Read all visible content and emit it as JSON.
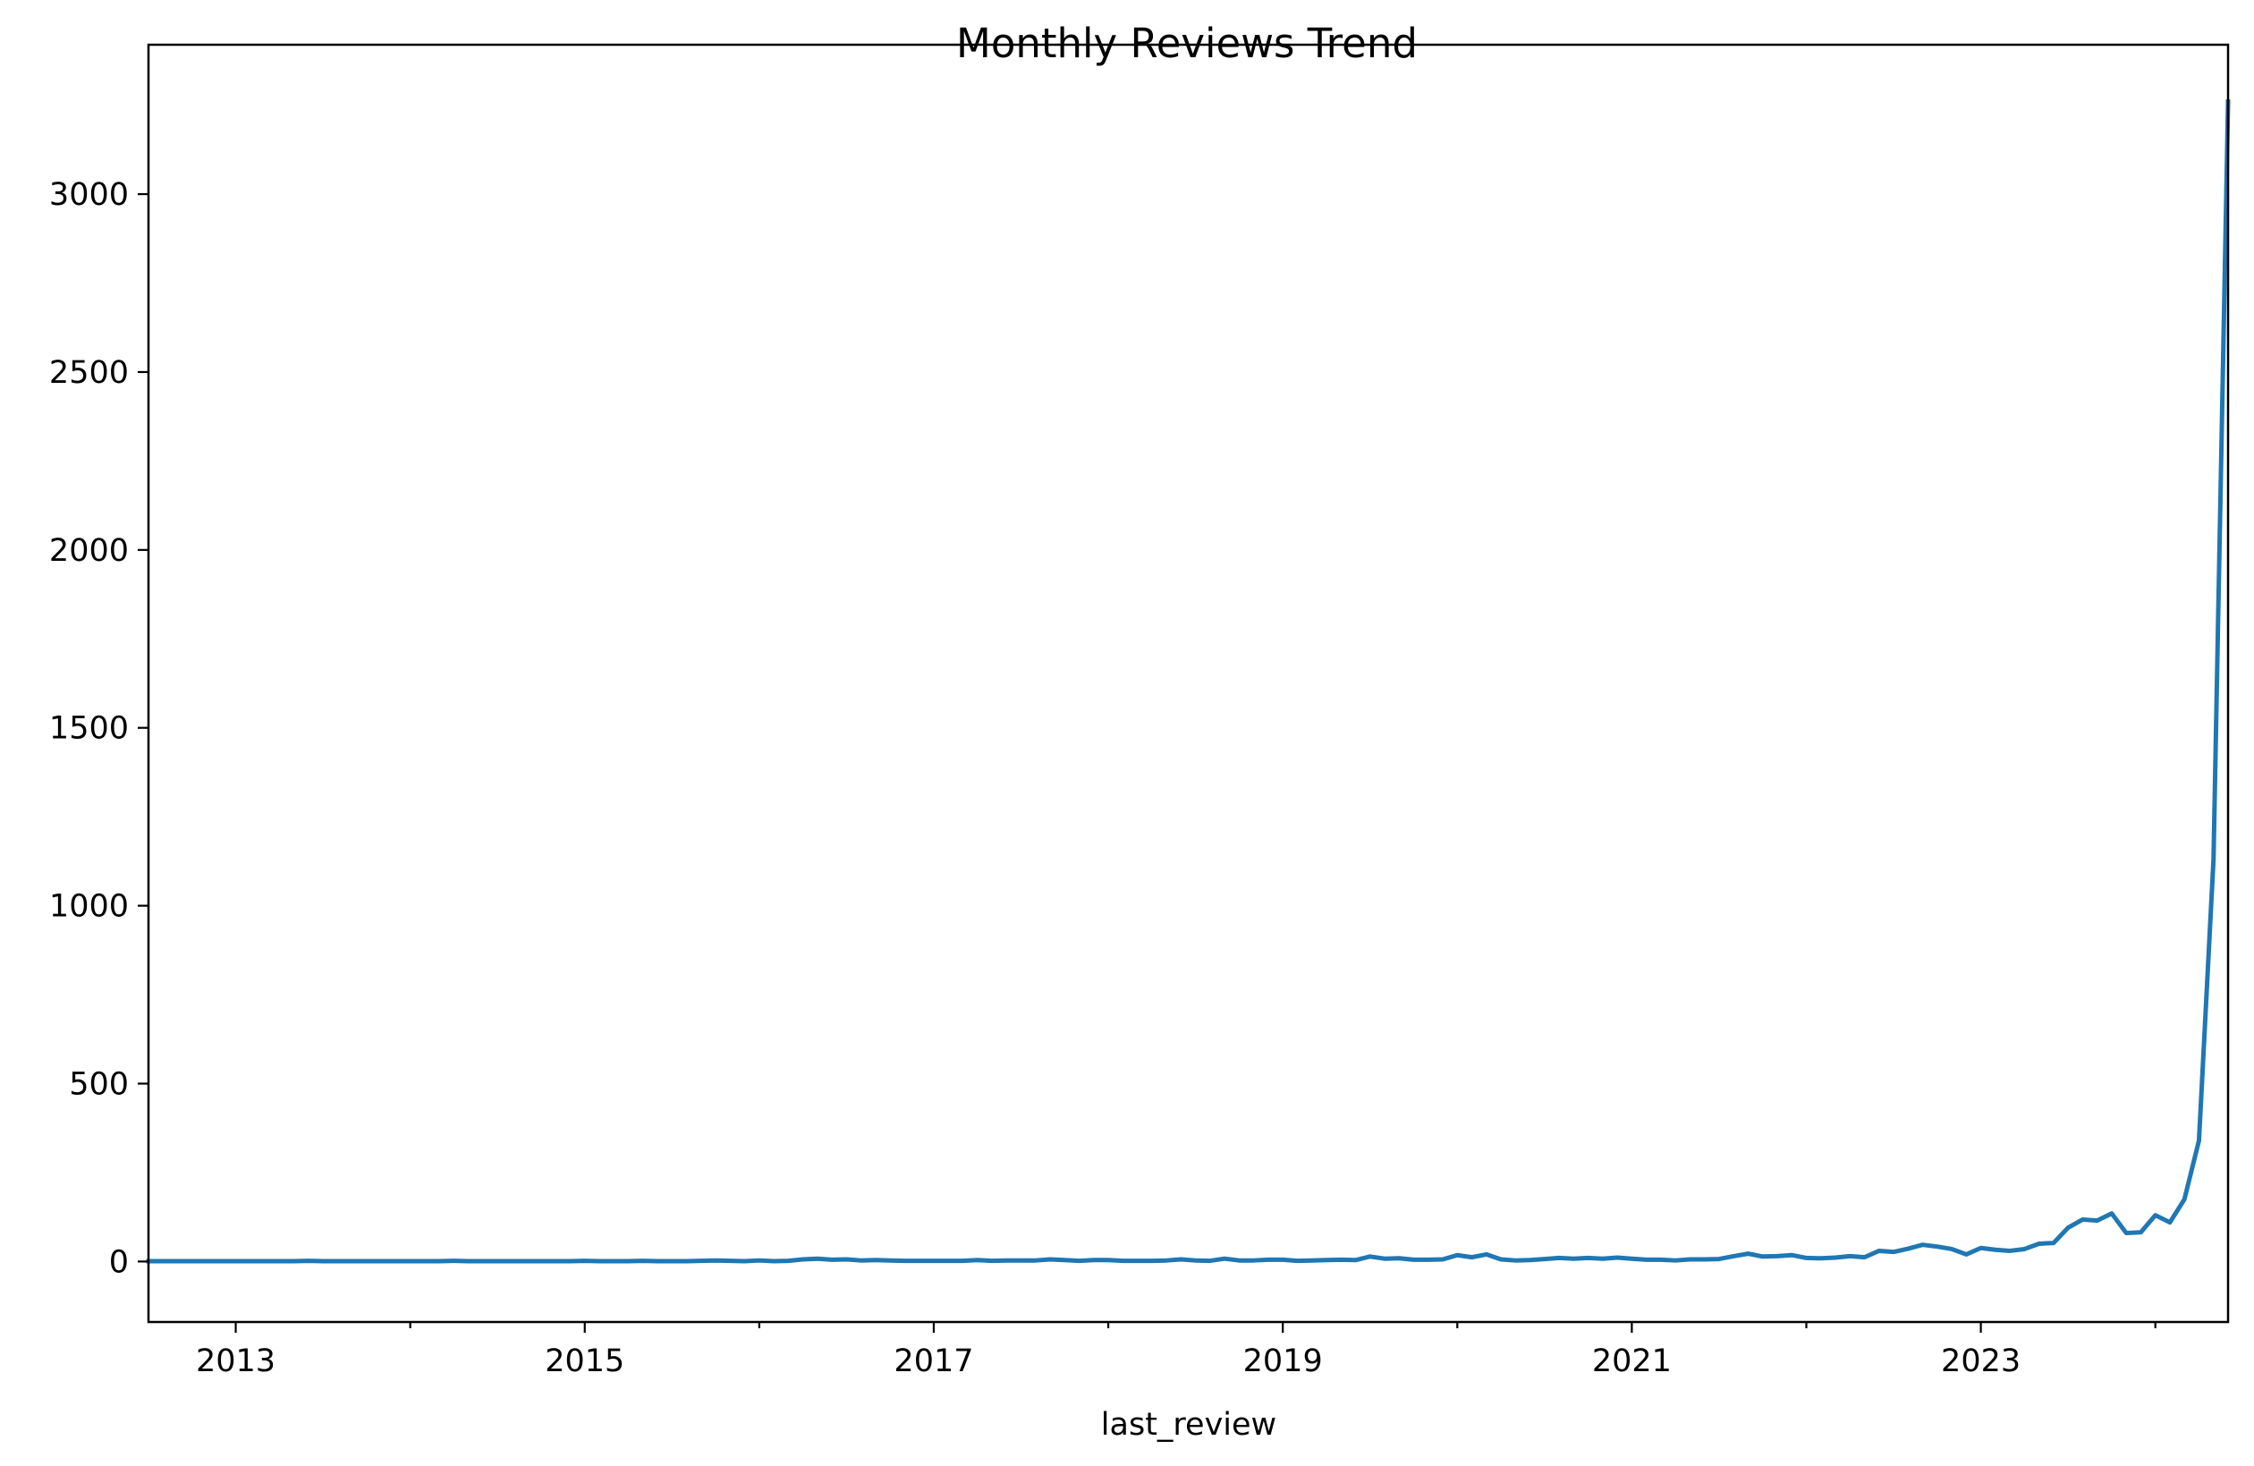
{
  "chart_data": {
    "type": "line",
    "title": "Monthly Reviews Trend",
    "xlabel": "last_review",
    "ylabel": "",
    "x_type": "date",
    "xlim": [
      "2012-07",
      "2024-06"
    ],
    "ylim": [
      -170,
      3420
    ],
    "x_major_ticks": [
      "2013-01",
      "2015-01",
      "2017-01",
      "2019-01",
      "2021-01",
      "2023-01"
    ],
    "x_tick_labels": [
      "2013",
      "2015",
      "2017",
      "2019",
      "2021",
      "2023"
    ],
    "x_minor_ticks": [
      "2014-01",
      "2016-01",
      "2018-01",
      "2020-01",
      "2022-01",
      "2024-01"
    ],
    "y_ticks": [
      0,
      500,
      1000,
      1500,
      2000,
      2500,
      3000
    ],
    "y_tick_labels": [
      "0",
      "500",
      "1000",
      "1500",
      "2000",
      "2500",
      "3000"
    ],
    "grid": false,
    "legend": "none",
    "series": [
      {
        "color": "#1f77b4",
        "x": [
          "2012-07",
          "2012-08",
          "2012-09",
          "2012-10",
          "2012-11",
          "2012-12",
          "2013-01",
          "2013-02",
          "2013-03",
          "2013-04",
          "2013-05",
          "2013-06",
          "2013-07",
          "2013-08",
          "2013-09",
          "2013-10",
          "2013-11",
          "2013-12",
          "2014-01",
          "2014-02",
          "2014-03",
          "2014-04",
          "2014-05",
          "2014-06",
          "2014-07",
          "2014-08",
          "2014-09",
          "2014-10",
          "2014-11",
          "2014-12",
          "2015-01",
          "2015-02",
          "2015-03",
          "2015-04",
          "2015-05",
          "2015-06",
          "2015-07",
          "2015-08",
          "2015-09",
          "2015-10",
          "2015-11",
          "2015-12",
          "2016-01",
          "2016-02",
          "2016-03",
          "2016-04",
          "2016-05",
          "2016-06",
          "2016-07",
          "2016-08",
          "2016-09",
          "2016-10",
          "2016-11",
          "2016-12",
          "2017-01",
          "2017-02",
          "2017-03",
          "2017-04",
          "2017-05",
          "2017-06",
          "2017-07",
          "2017-08",
          "2017-09",
          "2017-10",
          "2017-11",
          "2017-12",
          "2018-01",
          "2018-02",
          "2018-03",
          "2018-04",
          "2018-05",
          "2018-06",
          "2018-07",
          "2018-08",
          "2018-09",
          "2018-10",
          "2018-11",
          "2018-12",
          "2019-01",
          "2019-02",
          "2019-03",
          "2019-04",
          "2019-05",
          "2019-06",
          "2019-07",
          "2019-08",
          "2019-09",
          "2019-10",
          "2019-11",
          "2019-12",
          "2020-01",
          "2020-02",
          "2020-03",
          "2020-04",
          "2020-05",
          "2020-06",
          "2020-07",
          "2020-08",
          "2020-09",
          "2020-10",
          "2020-11",
          "2020-12",
          "2021-01",
          "2021-02",
          "2021-03",
          "2021-04",
          "2021-05",
          "2021-06",
          "2021-07",
          "2021-08",
          "2021-09",
          "2021-10",
          "2021-11",
          "2021-12",
          "2022-01",
          "2022-02",
          "2022-03",
          "2022-04",
          "2022-05",
          "2022-06",
          "2022-07",
          "2022-08",
          "2022-09",
          "2022-10",
          "2022-11",
          "2022-12",
          "2023-01",
          "2023-02",
          "2023-03",
          "2023-04",
          "2023-05",
          "2023-06",
          "2023-07",
          "2023-08",
          "2023-09",
          "2023-10",
          "2023-11",
          "2023-12",
          "2024-01",
          "2024-02",
          "2024-03",
          "2024-04",
          "2024-05",
          "2024-06"
        ],
        "y": [
          1,
          1,
          1,
          1,
          1,
          1,
          1,
          1,
          1,
          1,
          1,
          2,
          1,
          1,
          1,
          1,
          1,
          1,
          1,
          1,
          1,
          2,
          1,
          1,
          1,
          1,
          1,
          1,
          1,
          1,
          2,
          1,
          1,
          1,
          2,
          1,
          1,
          1,
          2,
          3,
          2,
          1,
          3,
          1,
          2,
          6,
          8,
          5,
          6,
          3,
          4,
          3,
          2,
          2,
          2,
          2,
          2,
          4,
          2,
          3,
          3,
          3,
          6,
          4,
          2,
          4,
          4,
          2,
          2,
          2,
          3,
          6,
          3,
          2,
          8,
          3,
          3,
          5,
          5,
          2,
          3,
          4,
          5,
          4,
          14,
          8,
          9,
          5,
          5,
          6,
          18,
          12,
          20,
          6,
          3,
          4,
          7,
          10,
          8,
          10,
          8,
          11,
          8,
          5,
          5,
          3,
          6,
          6,
          7,
          15,
          22,
          14,
          15,
          18,
          10,
          9,
          11,
          15,
          12,
          30,
          27,
          36,
          47,
          42,
          35,
          20,
          38,
          33,
          30,
          35,
          50,
          52,
          95,
          118,
          115,
          135,
          80,
          82,
          130,
          110,
          175,
          340,
          1130,
          3260
        ]
      }
    ]
  }
}
